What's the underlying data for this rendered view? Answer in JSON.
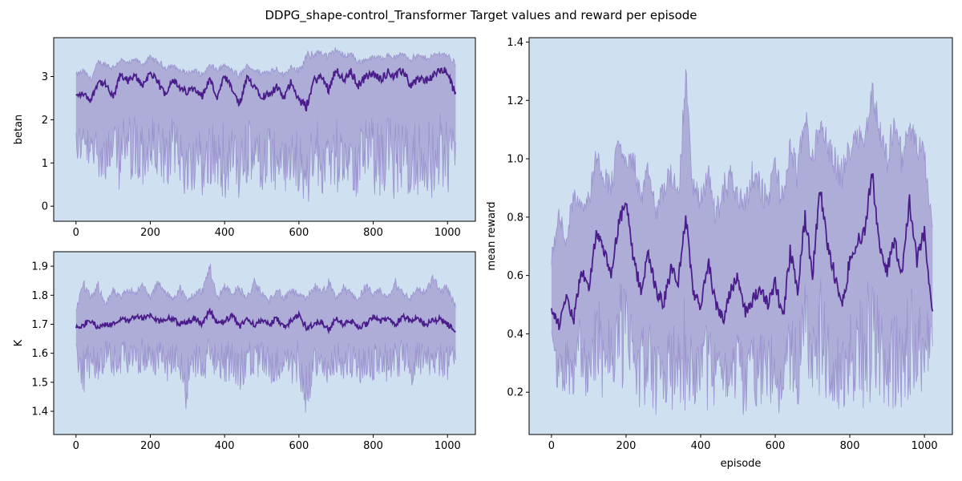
{
  "figure": {
    "suptitle": "DDPG_shape-control_Transformer Target values and reward per episode"
  },
  "colors": {
    "plot_background": "#cfe0f0",
    "band_fill": "#a7a3d4",
    "band_edge": "#9c94cf",
    "mean_line": "#4b1d8a",
    "axis": "#000000"
  },
  "chart_data": [
    {
      "type": "line",
      "id": "betan",
      "title": "",
      "xlabel": "",
      "ylabel": "betan",
      "xlim": [
        -60,
        1075
      ],
      "ylim": [
        -0.35,
        3.9
      ],
      "x_ticks": [
        0,
        200,
        400,
        600,
        800,
        1000
      ],
      "x_tick_labels": [
        "0",
        "200",
        "400",
        "600",
        "800",
        "1000"
      ],
      "y_ticks": [
        0,
        1,
        2,
        3
      ],
      "y_tick_labels": [
        "0",
        "1",
        "2",
        "3"
      ],
      "grid": false,
      "episodes": [
        0,
        1023
      ],
      "series": [
        {
          "role": "mean",
          "x": [
            0,
            20,
            40,
            60,
            80,
            100,
            120,
            140,
            160,
            180,
            200,
            220,
            240,
            260,
            280,
            300,
            320,
            340,
            360,
            380,
            400,
            420,
            440,
            460,
            480,
            500,
            520,
            540,
            560,
            580,
            600,
            620,
            640,
            660,
            680,
            700,
            720,
            740,
            760,
            780,
            800,
            820,
            840,
            860,
            880,
            900,
            920,
            940,
            960,
            980,
            1000,
            1020
          ],
          "y": [
            2.55,
            2.6,
            2.45,
            2.9,
            2.8,
            2.5,
            3.05,
            2.9,
            3.0,
            2.8,
            3.1,
            2.85,
            2.6,
            2.95,
            2.7,
            2.65,
            2.75,
            2.55,
            2.95,
            2.5,
            3.0,
            2.7,
            2.35,
            2.95,
            2.8,
            2.55,
            2.6,
            2.75,
            2.5,
            2.9,
            2.45,
            2.3,
            2.9,
            3.0,
            2.7,
            3.2,
            2.9,
            3.1,
            2.8,
            3.0,
            3.05,
            2.95,
            3.1,
            3.0,
            3.15,
            2.8,
            2.95,
            2.9,
            3.0,
            3.15,
            3.1,
            2.6
          ]
        },
        {
          "role": "band-upper",
          "x": [
            0,
            20,
            40,
            60,
            80,
            100,
            120,
            140,
            160,
            180,
            200,
            220,
            240,
            260,
            280,
            300,
            320,
            340,
            360,
            380,
            400,
            420,
            440,
            460,
            480,
            500,
            520,
            540,
            560,
            580,
            600,
            620,
            640,
            660,
            680,
            700,
            720,
            740,
            760,
            780,
            800,
            820,
            840,
            860,
            880,
            900,
            920,
            940,
            960,
            980,
            1000,
            1020
          ],
          "y": [
            3.1,
            3.2,
            3.0,
            3.4,
            3.35,
            3.3,
            3.45,
            3.35,
            3.45,
            3.35,
            3.5,
            3.4,
            3.3,
            3.3,
            3.2,
            3.15,
            3.2,
            3.1,
            3.3,
            3.25,
            3.3,
            3.2,
            3.1,
            3.3,
            3.2,
            3.15,
            3.2,
            3.25,
            3.1,
            3.3,
            3.2,
            3.6,
            3.6,
            3.65,
            3.55,
            3.7,
            3.55,
            3.6,
            3.4,
            3.45,
            3.5,
            3.5,
            3.55,
            3.5,
            3.6,
            3.5,
            3.55,
            3.5,
            3.55,
            3.6,
            3.55,
            3.4
          ]
        },
        {
          "role": "band-lower",
          "x": [
            0,
            20,
            40,
            60,
            80,
            100,
            120,
            140,
            160,
            180,
            200,
            220,
            240,
            260,
            280,
            300,
            320,
            340,
            360,
            380,
            400,
            420,
            440,
            460,
            480,
            500,
            520,
            540,
            560,
            580,
            600,
            620,
            640,
            660,
            680,
            700,
            720,
            740,
            760,
            780,
            800,
            820,
            840,
            860,
            880,
            900,
            920,
            940,
            960,
            980,
            1000,
            1020
          ],
          "y": [
            1.0,
            0.9,
            0.5,
            0.7,
            0.4,
            0.55,
            0.3,
            0.6,
            0.45,
            0.35,
            0.5,
            0.4,
            0.3,
            0.5,
            0.4,
            0.1,
            0.35,
            0.05,
            0.3,
            0.45,
            0.1,
            0.3,
            0.05,
            0.25,
            0.45,
            0.2,
            0.4,
            0.15,
            0.3,
            0.2,
            0.35,
            -0.1,
            0.25,
            0.15,
            0.4,
            0.2,
            0.45,
            0.3,
            0.1,
            0.35,
            0.2,
            0.05,
            0.25,
            0.1,
            0.4,
            0.2,
            0.05,
            0.3,
            0.15,
            0.35,
            0.2,
            0.6
          ]
        }
      ]
    },
    {
      "type": "line",
      "id": "K",
      "title": "",
      "xlabel": "",
      "ylabel": "K",
      "xlim": [
        -60,
        1075
      ],
      "ylim": [
        1.32,
        1.95
      ],
      "x_ticks": [
        0,
        200,
        400,
        600,
        800,
        1000
      ],
      "x_tick_labels": [
        "0",
        "200",
        "400",
        "600",
        "800",
        "1000"
      ],
      "y_ticks": [
        1.4,
        1.5,
        1.6,
        1.7,
        1.8,
        1.9
      ],
      "y_tick_labels": [
        "1.4",
        "1.5",
        "1.6",
        "1.7",
        "1.8",
        "1.9"
      ],
      "grid": false,
      "episodes": [
        0,
        1023
      ],
      "series": [
        {
          "role": "mean",
          "x": [
            0,
            20,
            40,
            60,
            80,
            100,
            120,
            140,
            160,
            180,
            200,
            220,
            240,
            260,
            280,
            300,
            320,
            340,
            360,
            380,
            400,
            420,
            440,
            460,
            480,
            500,
            520,
            540,
            560,
            580,
            600,
            620,
            640,
            660,
            680,
            700,
            720,
            740,
            760,
            780,
            800,
            820,
            840,
            860,
            880,
            900,
            920,
            940,
            960,
            980,
            1000,
            1020
          ],
          "y": [
            1.69,
            1.7,
            1.71,
            1.69,
            1.7,
            1.7,
            1.72,
            1.71,
            1.73,
            1.72,
            1.73,
            1.71,
            1.72,
            1.72,
            1.7,
            1.71,
            1.72,
            1.7,
            1.75,
            1.7,
            1.71,
            1.73,
            1.69,
            1.72,
            1.7,
            1.71,
            1.7,
            1.72,
            1.69,
            1.71,
            1.73,
            1.69,
            1.7,
            1.71,
            1.68,
            1.72,
            1.7,
            1.71,
            1.69,
            1.7,
            1.73,
            1.71,
            1.72,
            1.7,
            1.73,
            1.71,
            1.72,
            1.7,
            1.71,
            1.72,
            1.7,
            1.68
          ]
        },
        {
          "role": "band-upper",
          "x": [
            0,
            20,
            40,
            60,
            80,
            100,
            120,
            140,
            160,
            180,
            200,
            220,
            240,
            260,
            280,
            300,
            320,
            340,
            360,
            380,
            400,
            420,
            440,
            460,
            480,
            500,
            520,
            540,
            560,
            580,
            600,
            620,
            640,
            660,
            680,
            700,
            720,
            740,
            760,
            780,
            800,
            820,
            840,
            860,
            880,
            900,
            920,
            940,
            960,
            980,
            1000,
            1020
          ],
          "y": [
            1.76,
            1.86,
            1.8,
            1.85,
            1.78,
            1.83,
            1.8,
            1.84,
            1.82,
            1.85,
            1.8,
            1.86,
            1.82,
            1.8,
            1.84,
            1.79,
            1.82,
            1.83,
            1.92,
            1.8,
            1.85,
            1.82,
            1.84,
            1.8,
            1.86,
            1.82,
            1.79,
            1.84,
            1.8,
            1.83,
            1.81,
            1.8,
            1.85,
            1.82,
            1.86,
            1.8,
            1.84,
            1.82,
            1.8,
            1.85,
            1.81,
            1.83,
            1.8,
            1.86,
            1.82,
            1.8,
            1.84,
            1.82,
            1.88,
            1.83,
            1.84,
            1.78
          ]
        },
        {
          "role": "band-lower",
          "x": [
            0,
            20,
            40,
            60,
            80,
            100,
            120,
            140,
            160,
            180,
            200,
            220,
            240,
            260,
            280,
            300,
            320,
            340,
            360,
            380,
            400,
            420,
            440,
            460,
            480,
            500,
            520,
            540,
            560,
            580,
            600,
            620,
            640,
            660,
            680,
            700,
            720,
            740,
            760,
            780,
            800,
            820,
            840,
            860,
            880,
            900,
            920,
            940,
            960,
            980,
            1000,
            1020
          ],
          "y": [
            1.55,
            1.45,
            1.52,
            1.5,
            1.54,
            1.52,
            1.5,
            1.53,
            1.51,
            1.54,
            1.5,
            1.52,
            1.49,
            1.53,
            1.5,
            1.35,
            1.48,
            1.52,
            1.5,
            1.53,
            1.49,
            1.51,
            1.45,
            1.52,
            1.5,
            1.53,
            1.49,
            1.5,
            1.52,
            1.48,
            1.5,
            1.38,
            1.5,
            1.52,
            1.49,
            1.53,
            1.5,
            1.51,
            1.48,
            1.52,
            1.5,
            1.53,
            1.49,
            1.52,
            1.5,
            1.48,
            1.52,
            1.5,
            1.53,
            1.51,
            1.5,
            1.56
          ]
        }
      ]
    },
    {
      "type": "line",
      "id": "mean-reward",
      "title": "",
      "xlabel": "episode",
      "ylabel": "mean reward",
      "xlim": [
        -60,
        1075
      ],
      "ylim": [
        0.055,
        1.415
      ],
      "x_ticks": [
        0,
        200,
        400,
        600,
        800,
        1000
      ],
      "x_tick_labels": [
        "0",
        "200",
        "400",
        "600",
        "800",
        "1000"
      ],
      "y_ticks": [
        0.2,
        0.4,
        0.6,
        0.8,
        1.0,
        1.2,
        1.4
      ],
      "y_tick_labels": [
        "0.2",
        "0.4",
        "0.6",
        "0.8",
        "1.0",
        "1.2",
        "1.4"
      ],
      "grid": false,
      "episodes": [
        0,
        1023
      ],
      "series": [
        {
          "role": "mean",
          "x": [
            0,
            20,
            40,
            60,
            80,
            100,
            120,
            140,
            160,
            180,
            200,
            220,
            240,
            260,
            280,
            300,
            320,
            340,
            360,
            380,
            400,
            420,
            440,
            460,
            480,
            500,
            520,
            540,
            560,
            580,
            600,
            620,
            640,
            660,
            680,
            700,
            720,
            740,
            760,
            780,
            800,
            820,
            840,
            860,
            880,
            900,
            920,
            940,
            960,
            980,
            1000,
            1020
          ],
          "y": [
            0.48,
            0.43,
            0.52,
            0.45,
            0.62,
            0.55,
            0.75,
            0.68,
            0.6,
            0.78,
            0.85,
            0.65,
            0.55,
            0.68,
            0.55,
            0.5,
            0.62,
            0.58,
            0.8,
            0.55,
            0.48,
            0.65,
            0.5,
            0.45,
            0.55,
            0.6,
            0.47,
            0.52,
            0.55,
            0.5,
            0.58,
            0.45,
            0.68,
            0.55,
            0.8,
            0.6,
            0.9,
            0.7,
            0.6,
            0.5,
            0.65,
            0.72,
            0.75,
            0.95,
            0.7,
            0.62,
            0.72,
            0.6,
            0.85,
            0.65,
            0.75,
            0.48
          ]
        },
        {
          "role": "band-upper",
          "x": [
            0,
            20,
            40,
            60,
            80,
            100,
            120,
            140,
            160,
            180,
            200,
            220,
            240,
            260,
            280,
            300,
            320,
            340,
            360,
            380,
            400,
            420,
            440,
            460,
            480,
            500,
            520,
            540,
            560,
            580,
            600,
            620,
            640,
            660,
            680,
            700,
            720,
            740,
            760,
            780,
            800,
            820,
            840,
            860,
            880,
            900,
            920,
            940,
            960,
            980,
            1000,
            1020
          ],
          "y": [
            0.68,
            0.85,
            0.75,
            0.95,
            0.88,
            0.9,
            1.05,
            0.98,
            0.95,
            1.1,
            1.0,
            1.05,
            0.9,
            1.0,
            0.85,
            0.95,
            1.0,
            0.9,
            1.35,
            0.95,
            0.9,
            1.0,
            0.85,
            0.95,
            1.0,
            0.9,
            0.92,
            1.0,
            0.95,
            0.9,
            1.05,
            0.9,
            1.1,
            1.0,
            1.2,
            1.05,
            1.15,
            1.1,
            1.05,
            1.0,
            1.1,
            1.15,
            1.1,
            1.28,
            1.15,
            1.05,
            1.2,
            1.05,
            1.15,
            1.1,
            1.05,
            0.8
          ]
        },
        {
          "role": "band-lower",
          "x": [
            0,
            20,
            40,
            60,
            80,
            100,
            120,
            140,
            160,
            180,
            200,
            220,
            240,
            260,
            280,
            300,
            320,
            340,
            360,
            380,
            400,
            420,
            440,
            460,
            480,
            500,
            520,
            540,
            560,
            580,
            600,
            620,
            640,
            660,
            680,
            700,
            720,
            740,
            760,
            780,
            800,
            820,
            840,
            860,
            880,
            900,
            920,
            940,
            960,
            980,
            1000,
            1020
          ],
          "y": [
            0.32,
            0.17,
            0.2,
            0.16,
            0.22,
            0.15,
            0.25,
            0.14,
            0.18,
            0.2,
            0.15,
            0.22,
            0.13,
            0.18,
            0.12,
            0.16,
            0.09,
            0.18,
            0.12,
            0.15,
            0.17,
            0.11,
            0.15,
            0.18,
            0.13,
            0.15,
            0.1,
            0.16,
            0.14,
            0.17,
            0.12,
            0.1,
            0.15,
            0.13,
            0.18,
            0.12,
            0.14,
            0.16,
            0.12,
            0.15,
            0.13,
            0.17,
            0.11,
            0.14,
            0.12,
            0.15,
            0.13,
            0.1,
            0.14,
            0.12,
            0.16,
            0.35
          ]
        }
      ]
    }
  ]
}
